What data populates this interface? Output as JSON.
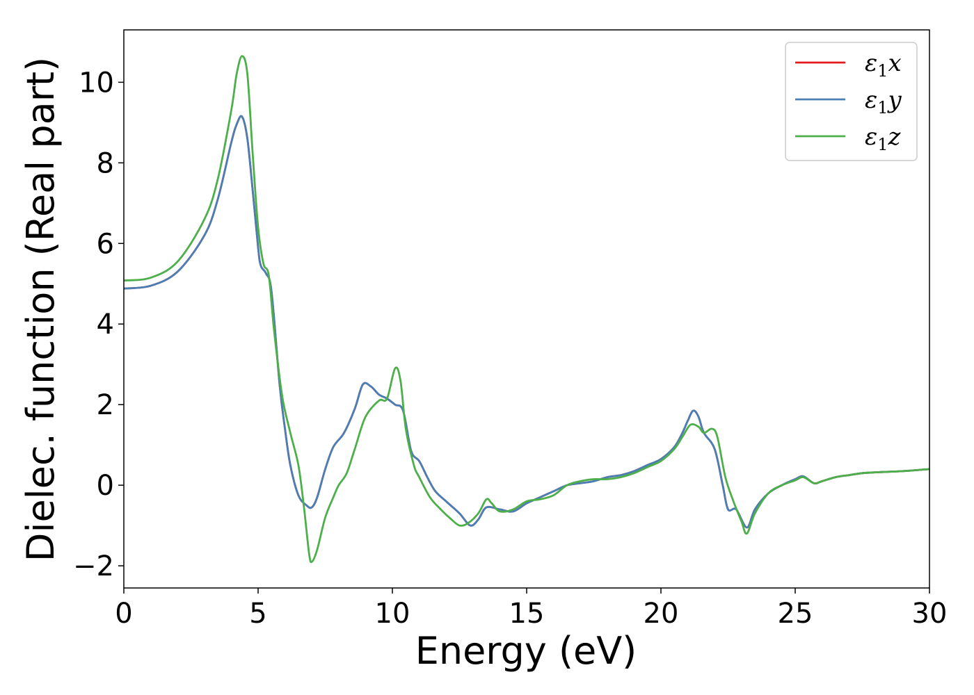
{
  "chart_data": {
    "type": "line",
    "title": "",
    "xlabel": "Energy (eV)",
    "ylabel": "Dielec. function (Real part)",
    "xlim": [
      0,
      30
    ],
    "ylim": [
      -2.55,
      11.3
    ],
    "xticks": [
      0,
      5,
      10,
      15,
      20,
      25,
      30
    ],
    "yticks": [
      -2,
      0,
      2,
      4,
      6,
      8,
      10
    ],
    "ytick_labels": [
      "−2",
      "0",
      "2",
      "4",
      "6",
      "8",
      "10"
    ],
    "grid": false,
    "legend": "top-right",
    "series": [
      {
        "name": "ε",
        "sub": "1",
        "axis": "x",
        "color": "#e41a1c",
        "points": [
          [
            0,
            4.88
          ],
          [
            1,
            4.95
          ],
          [
            2,
            5.3
          ],
          [
            3,
            6.2
          ],
          [
            3.5,
            7.1
          ],
          [
            4,
            8.5
          ],
          [
            4.2,
            8.95
          ],
          [
            4.4,
            9.15
          ],
          [
            4.6,
            8.6
          ],
          [
            4.8,
            7.3
          ],
          [
            5,
            5.9
          ],
          [
            5.1,
            5.45
          ],
          [
            5.3,
            5.25
          ],
          [
            5.5,
            4.8
          ],
          [
            5.8,
            2.5
          ],
          [
            6,
            1.4
          ],
          [
            6.2,
            0.5
          ],
          [
            6.5,
            -0.25
          ],
          [
            6.8,
            -0.5
          ],
          [
            7,
            -0.55
          ],
          [
            7.2,
            -0.3
          ],
          [
            7.5,
            0.4
          ],
          [
            7.8,
            0.95
          ],
          [
            8.2,
            1.3
          ],
          [
            8.6,
            1.9
          ],
          [
            8.9,
            2.5
          ],
          [
            9.2,
            2.45
          ],
          [
            9.5,
            2.25
          ],
          [
            9.8,
            2.15
          ],
          [
            10.1,
            2.0
          ],
          [
            10.4,
            1.85
          ],
          [
            10.7,
            0.85
          ],
          [
            11,
            0.6
          ],
          [
            11.3,
            0.2
          ],
          [
            11.6,
            -0.15
          ],
          [
            12,
            -0.4
          ],
          [
            12.5,
            -0.7
          ],
          [
            12.9,
            -1.0
          ],
          [
            13.2,
            -0.85
          ],
          [
            13.5,
            -0.55
          ],
          [
            14,
            -0.6
          ],
          [
            14.5,
            -0.65
          ],
          [
            15,
            -0.45
          ],
          [
            15.5,
            -0.3
          ],
          [
            16,
            -0.15
          ],
          [
            16.5,
            0.0
          ],
          [
            17,
            0.05
          ],
          [
            17.5,
            0.1
          ],
          [
            18,
            0.2
          ],
          [
            18.5,
            0.25
          ],
          [
            19,
            0.35
          ],
          [
            19.5,
            0.5
          ],
          [
            20,
            0.65
          ],
          [
            20.5,
            0.95
          ],
          [
            20.8,
            1.3
          ],
          [
            21,
            1.6
          ],
          [
            21.2,
            1.85
          ],
          [
            21.4,
            1.7
          ],
          [
            21.6,
            1.3
          ],
          [
            22,
            0.9
          ],
          [
            22.3,
            0.0
          ],
          [
            22.5,
            -0.6
          ],
          [
            22.8,
            -0.6
          ],
          [
            23.2,
            -1.05
          ],
          [
            23.5,
            -0.6
          ],
          [
            24,
            -0.2
          ],
          [
            24.5,
            0.0
          ],
          [
            25,
            0.15
          ],
          [
            25.3,
            0.22
          ],
          [
            25.7,
            0.05
          ],
          [
            26,
            0.1
          ],
          [
            26.5,
            0.2
          ],
          [
            27,
            0.25
          ],
          [
            27.5,
            0.3
          ],
          [
            28,
            0.32
          ],
          [
            29,
            0.35
          ],
          [
            30,
            0.4
          ]
        ]
      },
      {
        "name": "ε",
        "sub": "1",
        "axis": "y",
        "color": "#4a7fb5",
        "points": [
          [
            0,
            4.88
          ],
          [
            1,
            4.95
          ],
          [
            2,
            5.3
          ],
          [
            3,
            6.2
          ],
          [
            3.5,
            7.1
          ],
          [
            4,
            8.5
          ],
          [
            4.2,
            8.95
          ],
          [
            4.4,
            9.15
          ],
          [
            4.6,
            8.6
          ],
          [
            4.8,
            7.3
          ],
          [
            5,
            5.9
          ],
          [
            5.1,
            5.45
          ],
          [
            5.3,
            5.25
          ],
          [
            5.5,
            4.8
          ],
          [
            5.8,
            2.5
          ],
          [
            6,
            1.4
          ],
          [
            6.2,
            0.5
          ],
          [
            6.5,
            -0.25
          ],
          [
            6.8,
            -0.5
          ],
          [
            7,
            -0.55
          ],
          [
            7.2,
            -0.3
          ],
          [
            7.5,
            0.4
          ],
          [
            7.8,
            0.95
          ],
          [
            8.2,
            1.3
          ],
          [
            8.6,
            1.9
          ],
          [
            8.9,
            2.5
          ],
          [
            9.2,
            2.45
          ],
          [
            9.5,
            2.25
          ],
          [
            9.8,
            2.15
          ],
          [
            10.1,
            2.0
          ],
          [
            10.4,
            1.85
          ],
          [
            10.7,
            0.85
          ],
          [
            11,
            0.6
          ],
          [
            11.3,
            0.2
          ],
          [
            11.6,
            -0.15
          ],
          [
            12,
            -0.4
          ],
          [
            12.5,
            -0.7
          ],
          [
            12.9,
            -1.0
          ],
          [
            13.2,
            -0.85
          ],
          [
            13.5,
            -0.55
          ],
          [
            14,
            -0.6
          ],
          [
            14.5,
            -0.65
          ],
          [
            15,
            -0.45
          ],
          [
            15.5,
            -0.3
          ],
          [
            16,
            -0.15
          ],
          [
            16.5,
            0.0
          ],
          [
            17,
            0.05
          ],
          [
            17.5,
            0.1
          ],
          [
            18,
            0.2
          ],
          [
            18.5,
            0.25
          ],
          [
            19,
            0.35
          ],
          [
            19.5,
            0.5
          ],
          [
            20,
            0.65
          ],
          [
            20.5,
            0.95
          ],
          [
            20.8,
            1.3
          ],
          [
            21,
            1.6
          ],
          [
            21.2,
            1.85
          ],
          [
            21.4,
            1.7
          ],
          [
            21.6,
            1.3
          ],
          [
            22,
            0.9
          ],
          [
            22.3,
            0.0
          ],
          [
            22.5,
            -0.6
          ],
          [
            22.8,
            -0.6
          ],
          [
            23.2,
            -1.05
          ],
          [
            23.5,
            -0.6
          ],
          [
            24,
            -0.2
          ],
          [
            24.5,
            0.0
          ],
          [
            25,
            0.15
          ],
          [
            25.3,
            0.22
          ],
          [
            25.7,
            0.05
          ],
          [
            26,
            0.1
          ],
          [
            26.5,
            0.2
          ],
          [
            27,
            0.25
          ],
          [
            27.5,
            0.3
          ],
          [
            28,
            0.32
          ],
          [
            29,
            0.35
          ],
          [
            30,
            0.4
          ]
        ]
      },
      {
        "name": "ε",
        "sub": "1",
        "axis": "z",
        "color": "#4daf4a",
        "points": [
          [
            0,
            5.08
          ],
          [
            1,
            5.15
          ],
          [
            2,
            5.55
          ],
          [
            3,
            6.6
          ],
          [
            3.5,
            7.6
          ],
          [
            4,
            9.3
          ],
          [
            4.2,
            10.2
          ],
          [
            4.4,
            10.65
          ],
          [
            4.6,
            10.2
          ],
          [
            4.8,
            8.2
          ],
          [
            5,
            6.4
          ],
          [
            5.2,
            5.5
          ],
          [
            5.4,
            5.2
          ],
          [
            5.6,
            3.8
          ],
          [
            5.9,
            2.2
          ],
          [
            6.2,
            1.3
          ],
          [
            6.5,
            0.5
          ],
          [
            6.7,
            -0.5
          ],
          [
            6.9,
            -1.7
          ],
          [
            7,
            -1.9
          ],
          [
            7.2,
            -1.6
          ],
          [
            7.5,
            -0.8
          ],
          [
            7.8,
            -0.3
          ],
          [
            8,
            0.0
          ],
          [
            8.3,
            0.3
          ],
          [
            8.6,
            0.9
          ],
          [
            9,
            1.7
          ],
          [
            9.5,
            2.1
          ],
          [
            9.8,
            2.15
          ],
          [
            10.1,
            2.9
          ],
          [
            10.3,
            2.6
          ],
          [
            10.5,
            1.4
          ],
          [
            10.8,
            0.5
          ],
          [
            11,
            0.2
          ],
          [
            11.4,
            -0.3
          ],
          [
            11.8,
            -0.6
          ],
          [
            12.2,
            -0.85
          ],
          [
            12.5,
            -1.0
          ],
          [
            12.8,
            -0.95
          ],
          [
            13.2,
            -0.7
          ],
          [
            13.5,
            -0.35
          ],
          [
            13.7,
            -0.45
          ],
          [
            14,
            -0.65
          ],
          [
            14.5,
            -0.6
          ],
          [
            15,
            -0.4
          ],
          [
            15.5,
            -0.35
          ],
          [
            16,
            -0.25
          ],
          [
            16.5,
            0.0
          ],
          [
            17,
            0.1
          ],
          [
            17.5,
            0.15
          ],
          [
            18,
            0.15
          ],
          [
            18.5,
            0.2
          ],
          [
            19,
            0.3
          ],
          [
            19.5,
            0.45
          ],
          [
            20,
            0.6
          ],
          [
            20.5,
            0.9
          ],
          [
            20.8,
            1.2
          ],
          [
            21.1,
            1.5
          ],
          [
            21.4,
            1.45
          ],
          [
            21.6,
            1.3
          ],
          [
            21.9,
            1.4
          ],
          [
            22.1,
            1.2
          ],
          [
            22.4,
            0.2
          ],
          [
            22.7,
            -0.4
          ],
          [
            23,
            -0.9
          ],
          [
            23.2,
            -1.2
          ],
          [
            23.5,
            -0.7
          ],
          [
            24,
            -0.2
          ],
          [
            24.5,
            0.0
          ],
          [
            25,
            0.12
          ],
          [
            25.3,
            0.2
          ],
          [
            25.7,
            0.05
          ],
          [
            26,
            0.1
          ],
          [
            26.5,
            0.2
          ],
          [
            27,
            0.25
          ],
          [
            27.5,
            0.3
          ],
          [
            28,
            0.32
          ],
          [
            29,
            0.35
          ],
          [
            30,
            0.4
          ]
        ]
      }
    ]
  }
}
